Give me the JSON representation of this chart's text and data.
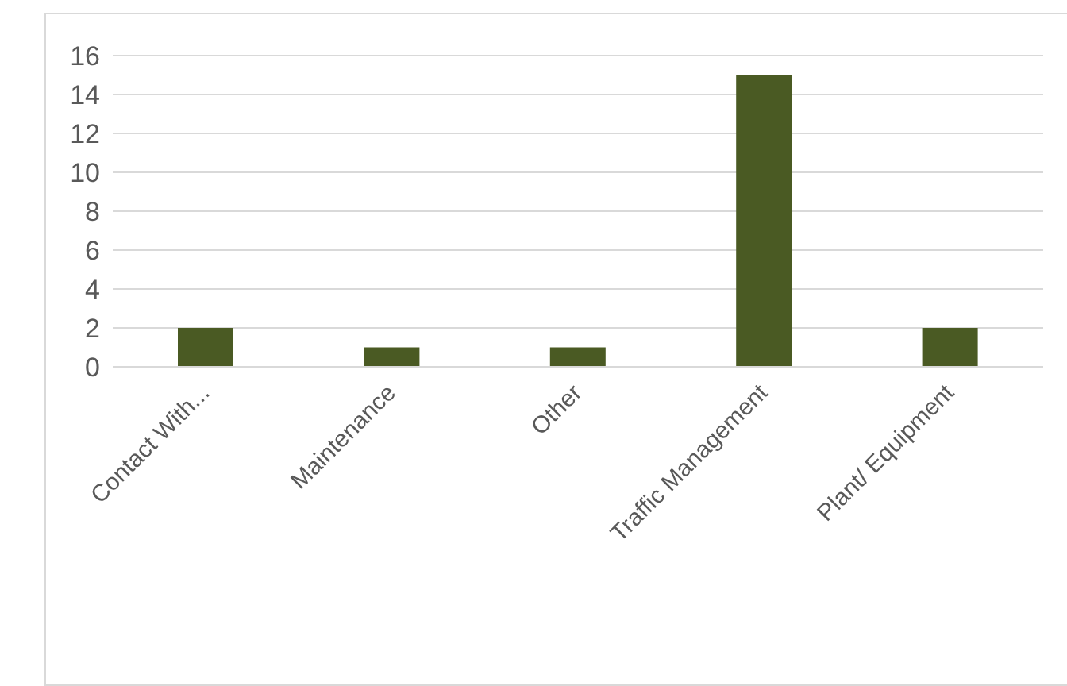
{
  "chart_data": {
    "type": "bar",
    "categories": [
      "Contact With...",
      "Maintenance",
      "Other",
      "Traffic Management",
      "Plant/ Equipment"
    ],
    "values": [
      2,
      1,
      1,
      15,
      2
    ],
    "color": "#4a5a23",
    "ylim": [
      0,
      16
    ],
    "yticks": [
      0,
      2,
      4,
      6,
      8,
      10,
      12,
      14,
      16
    ],
    "grid": "y",
    "legend": false
  }
}
